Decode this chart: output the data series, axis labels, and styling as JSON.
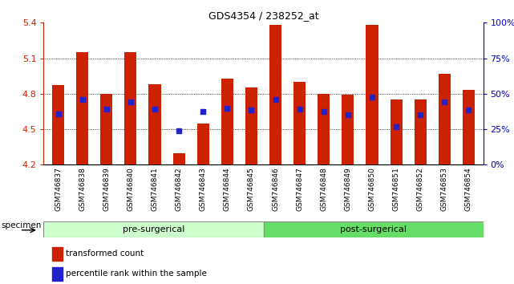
{
  "title": "GDS4354 / 238252_at",
  "samples": [
    "GSM746837",
    "GSM746838",
    "GSM746839",
    "GSM746840",
    "GSM746841",
    "GSM746842",
    "GSM746843",
    "GSM746844",
    "GSM746845",
    "GSM746846",
    "GSM746847",
    "GSM746848",
    "GSM746849",
    "GSM746850",
    "GSM746851",
    "GSM746852",
    "GSM746853",
    "GSM746854"
  ],
  "red_values": [
    4.87,
    5.15,
    4.8,
    5.15,
    4.88,
    4.3,
    4.55,
    4.93,
    4.85,
    5.38,
    4.9,
    4.8,
    4.79,
    5.38,
    4.75,
    4.75,
    4.97,
    4.83
  ],
  "blue_values": [
    4.63,
    4.75,
    4.67,
    4.73,
    4.67,
    4.49,
    4.65,
    4.68,
    4.66,
    4.75,
    4.67,
    4.65,
    4.62,
    4.77,
    4.52,
    4.62,
    4.73,
    4.66
  ],
  "ylim_left": [
    4.2,
    5.4
  ],
  "ylim_right": [
    0,
    100
  ],
  "yticks_left": [
    4.2,
    4.5,
    4.8,
    5.1,
    5.4
  ],
  "yticks_right": [
    0,
    25,
    50,
    75,
    100
  ],
  "pre_n": 9,
  "post_n": 9,
  "pre_label": "pre-surgerical",
  "post_label": "post-surgerical",
  "pre_color": "#ccffcc",
  "post_color": "#66dd66",
  "bar_color": "#cc2200",
  "dot_color": "#2222cc",
  "base": 4.2,
  "bar_width": 0.5,
  "legend_red": "transformed count",
  "legend_blue": "percentile rank within the sample",
  "specimen_label": "specimen",
  "label_color_left": "#cc2200",
  "label_color_right": "#0000cc",
  "grid_yticks": [
    4.5,
    4.8,
    5.1
  ],
  "title_fontsize": 9,
  "tick_fontsize": 6.5,
  "legend_fontsize": 7.5
}
